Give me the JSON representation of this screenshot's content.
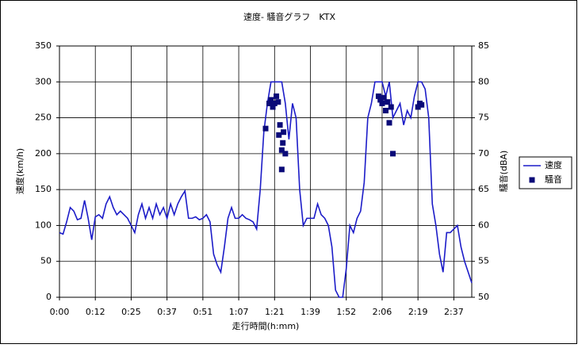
{
  "chart_data": {
    "type": "line",
    "title": "速度- 騒音グラフ　KTX",
    "xlabel": "走行時間(h:mm)",
    "ylabel": "速度(km/h)",
    "y2label": "騒音(dBA)",
    "xlim": [
      0,
      115
    ],
    "xticks": [
      {
        "value": 0,
        "label": "0:00"
      },
      {
        "value": 10,
        "label": "0:12"
      },
      {
        "value": 20,
        "label": "0:25"
      },
      {
        "value": 30,
        "label": "0:37"
      },
      {
        "value": 40,
        "label": "0:51"
      },
      {
        "value": 50,
        "label": "1:07"
      },
      {
        "value": 60,
        "label": "1:21"
      },
      {
        "value": 70,
        "label": "1:39"
      },
      {
        "value": 80,
        "label": "1:52"
      },
      {
        "value": 90,
        "label": "2:06"
      },
      {
        "value": 100,
        "label": "2:19"
      },
      {
        "value": 110,
        "label": "2:37"
      }
    ],
    "ylim": [
      0,
      350
    ],
    "yticks": [
      0,
      50,
      100,
      150,
      200,
      250,
      300,
      350
    ],
    "y2lim": [
      50,
      85
    ],
    "y2ticks": [
      50,
      55,
      60,
      65,
      70,
      75,
      80,
      85
    ],
    "grid": true,
    "legend": "right",
    "series": [
      {
        "name": "速度",
        "type": "line",
        "color": "#1c1cc8",
        "x": [
          0,
          1,
          2,
          3,
          4,
          5,
          6,
          7,
          8,
          9,
          10,
          11,
          12,
          13,
          14,
          15,
          16,
          17,
          18,
          19,
          20,
          21,
          22,
          23,
          24,
          25,
          26,
          27,
          28,
          29,
          30,
          31,
          32,
          33,
          34,
          35,
          36,
          37,
          38,
          39,
          40,
          41,
          42,
          43,
          44,
          45,
          46,
          47,
          48,
          49,
          50,
          51,
          52,
          53,
          54,
          55,
          56,
          57,
          58,
          59,
          60,
          61,
          62,
          63,
          64,
          65,
          66,
          67,
          68,
          69,
          70,
          71,
          72,
          73,
          74,
          75,
          76,
          77,
          78,
          79,
          80,
          81,
          82,
          83,
          84,
          85,
          86,
          87,
          88,
          89,
          90,
          91,
          92,
          93,
          94,
          95,
          96,
          97,
          98,
          99,
          100,
          101,
          102,
          103,
          104,
          105,
          106,
          107,
          108,
          109,
          110,
          111,
          112,
          113,
          114,
          115
        ],
        "values": [
          90,
          88,
          105,
          125,
          120,
          108,
          110,
          135,
          110,
          80,
          112,
          115,
          110,
          130,
          140,
          125,
          115,
          120,
          115,
          110,
          100,
          90,
          115,
          130,
          110,
          125,
          110,
          130,
          115,
          125,
          110,
          130,
          115,
          130,
          140,
          148,
          110,
          110,
          112,
          108,
          110,
          115,
          105,
          60,
          45,
          35,
          70,
          110,
          125,
          110,
          110,
          115,
          110,
          108,
          105,
          95,
          150,
          230,
          270,
          300,
          300,
          300,
          300,
          270,
          220,
          270,
          250,
          150,
          100,
          110,
          110,
          110,
          130,
          115,
          110,
          100,
          70,
          10,
          0,
          0,
          40,
          100,
          90,
          110,
          120,
          160,
          250,
          270,
          300,
          300,
          300,
          280,
          300,
          250,
          260,
          270,
          240,
          260,
          250,
          280,
          300,
          300,
          290,
          250,
          130,
          100,
          60,
          35,
          90,
          90,
          95,
          100,
          70,
          50,
          35,
          20
        ]
      },
      {
        "name": "騒音",
        "type": "scatter",
        "axis": "y2",
        "color": "#0a0a78",
        "x": [
          57.5,
          58.5,
          59,
          59.5,
          60,
          60.5,
          61,
          61.5,
          61.2,
          62,
          62.3,
          62.5,
          63,
          62,
          89,
          89.5,
          90,
          90.5,
          91,
          91.5,
          92,
          92.5,
          93,
          100,
          100.5,
          101
        ],
        "values": [
          73.5,
          77,
          77.5,
          76.5,
          77,
          78,
          77.2,
          74,
          72.6,
          70.5,
          71.5,
          73,
          70,
          67.8,
          78,
          77.5,
          77,
          77.8,
          76,
          77.2,
          74.3,
          76.5,
          70,
          76.5,
          77,
          76.8
        ]
      }
    ]
  }
}
